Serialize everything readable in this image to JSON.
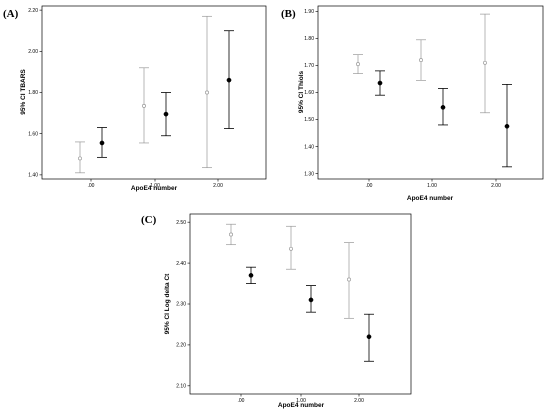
{
  "chart_data": [
    {
      "type": "errorbar",
      "panel_label": "(A)",
      "xlabel": "ApoE4 number",
      "ylabel": "95% CI TBARS",
      "categories": [
        ".00",
        "1.00",
        "2.00"
      ],
      "yticks": [
        "1.40",
        "1.60",
        "1.80",
        "2.00",
        "2.20"
      ],
      "ylim": [
        1.38,
        2.22
      ],
      "series": [
        {
          "color": "#999999",
          "marker": "open-circle",
          "mean": [
            1.48,
            1.735,
            1.8
          ],
          "lower": [
            1.41,
            1.555,
            1.435
          ],
          "upper": [
            1.56,
            1.92,
            2.17
          ]
        },
        {
          "color": "#000000",
          "marker": "filled-circle",
          "mean": [
            1.555,
            1.695,
            1.86
          ],
          "lower": [
            1.485,
            1.59,
            1.625
          ],
          "upper": [
            1.63,
            1.8,
            2.1
          ]
        }
      ]
    },
    {
      "type": "errorbar",
      "panel_label": "(B)",
      "xlabel": "ApoE4 number",
      "ylabel": "95% CI Thiols",
      "categories": [
        ".00",
        "1.00",
        "2.00"
      ],
      "yticks": [
        "1.30",
        "1.40",
        "1.50",
        "1.60",
        "1.70",
        "1.80",
        "1.90"
      ],
      "ylim": [
        1.28,
        1.92
      ],
      "series": [
        {
          "color": "#999999",
          "marker": "open-circle",
          "mean": [
            1.705,
            1.72,
            1.71
          ],
          "lower": [
            1.67,
            1.645,
            1.525
          ],
          "upper": [
            1.74,
            1.795,
            1.89
          ]
        },
        {
          "color": "#000000",
          "marker": "filled-circle",
          "mean": [
            1.635,
            1.545,
            1.475
          ],
          "lower": [
            1.59,
            1.48,
            1.325
          ],
          "upper": [
            1.68,
            1.615,
            1.63
          ]
        }
      ]
    },
    {
      "type": "errorbar",
      "panel_label": "(C)",
      "xlabel": "ApoE4 number",
      "ylabel": "95% CI Log delta Ct",
      "categories": [
        ".00",
        "1.00",
        "2.00"
      ],
      "yticks": [
        "2.10",
        "2.20",
        "2.30",
        "2.40",
        "2.50"
      ],
      "ylim": [
        2.08,
        2.52
      ],
      "series": [
        {
          "color": "#999999",
          "marker": "open-circle",
          "mean": [
            2.47,
            2.435,
            2.36
          ],
          "lower": [
            2.445,
            2.385,
            2.265
          ],
          "upper": [
            2.495,
            2.49,
            2.45
          ]
        },
        {
          "color": "#000000",
          "marker": "filled-circle",
          "mean": [
            2.37,
            2.31,
            2.22
          ],
          "lower": [
            2.35,
            2.28,
            2.16
          ],
          "upper": [
            2.39,
            2.345,
            2.275
          ]
        }
      ]
    }
  ]
}
